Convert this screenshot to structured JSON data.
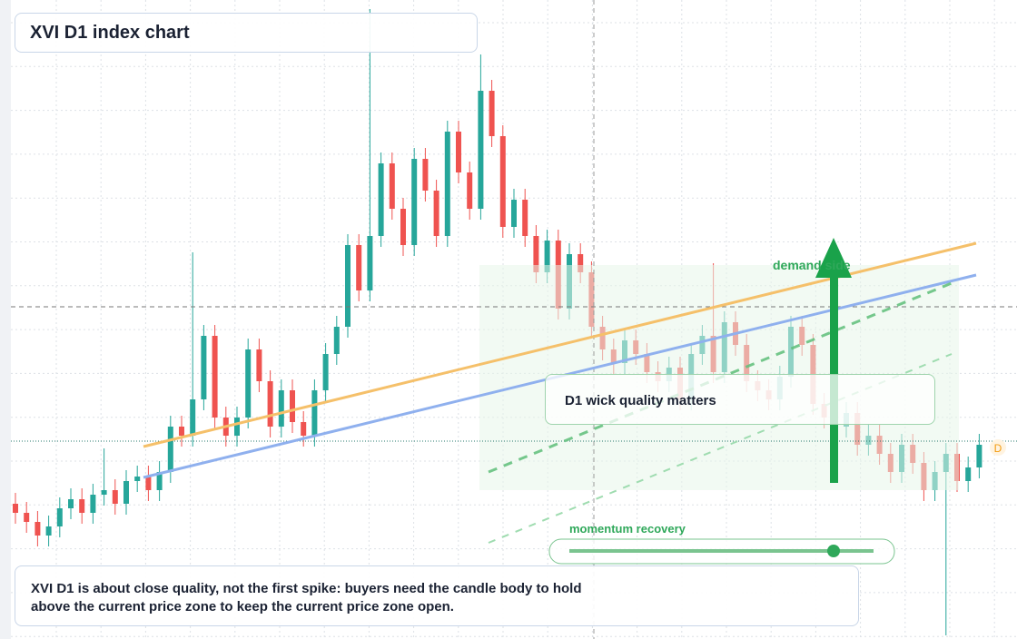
{
  "chart_data": {
    "type": "candlestick",
    "title": "XVI D1 index chart",
    "up_color": "#26a69a",
    "down_color": "#ef5350",
    "grid": true,
    "ylim": [
      0,
      704
    ],
    "ohlc": [
      [
        149,
        161,
        127,
        139
      ],
      [
        139,
        151,
        117,
        129
      ],
      [
        129,
        141,
        102,
        114
      ],
      [
        114,
        136,
        102,
        124
      ],
      [
        124,
        156,
        112,
        144
      ],
      [
        144,
        166,
        132,
        154
      ],
      [
        154,
        166,
        127,
        139
      ],
      [
        139,
        171,
        127,
        159
      ],
      [
        159,
        210,
        147,
        164
      ],
      [
        164,
        176,
        137,
        149
      ],
      [
        149,
        186,
        137,
        174
      ],
      [
        174,
        191,
        162,
        179
      ],
      [
        179,
        191,
        152,
        164
      ],
      [
        164,
        196,
        152,
        184
      ],
      [
        184,
        246,
        172,
        234
      ],
      [
        234,
        246,
        212,
        224
      ],
      [
        224,
        426,
        212,
        264
      ],
      [
        264,
        346,
        252,
        334
      ],
      [
        334,
        346,
        232,
        244
      ],
      [
        244,
        256,
        212,
        224
      ],
      [
        224,
        256,
        212,
        244
      ],
      [
        244,
        331,
        232,
        319
      ],
      [
        319,
        331,
        272,
        284
      ],
      [
        284,
        296,
        222,
        234
      ],
      [
        234,
        286,
        222,
        274
      ],
      [
        274,
        286,
        227,
        239
      ],
      [
        239,
        251,
        212,
        224
      ],
      [
        224,
        286,
        212,
        274
      ],
      [
        274,
        326,
        262,
        314
      ],
      [
        314,
        356,
        302,
        344
      ],
      [
        344,
        446,
        332,
        434
      ],
      [
        434,
        446,
        372,
        384
      ],
      [
        384,
        694,
        372,
        444
      ],
      [
        444,
        536,
        432,
        524
      ],
      [
        524,
        536,
        462,
        474
      ],
      [
        474,
        486,
        422,
        434
      ],
      [
        434,
        541,
        422,
        529
      ],
      [
        529,
        541,
        482,
        494
      ],
      [
        494,
        506,
        432,
        444
      ],
      [
        444,
        571,
        432,
        559
      ],
      [
        559,
        571,
        502,
        514
      ],
      [
        514,
        526,
        462,
        474
      ],
      [
        474,
        644,
        462,
        604
      ],
      [
        604,
        616,
        542,
        554
      ],
      [
        554,
        566,
        442,
        454
      ],
      [
        454,
        496,
        442,
        484
      ],
      [
        484,
        496,
        432,
        444
      ],
      [
        444,
        456,
        392,
        404
      ],
      [
        404,
        451,
        392,
        439
      ],
      [
        439,
        451,
        352,
        364
      ],
      [
        364,
        436,
        352,
        424
      ],
      [
        424,
        436,
        392,
        404
      ],
      [
        404,
        416,
        332,
        344
      ],
      [
        344,
        356,
        307,
        319
      ],
      [
        319,
        331,
        292,
        304
      ],
      [
        304,
        341,
        292,
        329
      ],
      [
        329,
        341,
        302,
        314
      ],
      [
        314,
        326,
        282,
        294
      ],
      [
        294,
        306,
        272,
        284
      ],
      [
        284,
        311,
        272,
        299
      ],
      [
        299,
        311,
        252,
        264
      ],
      [
        264,
        326,
        252,
        314
      ],
      [
        314,
        346,
        302,
        334
      ],
      [
        334,
        414,
        282,
        294
      ],
      [
        294,
        361,
        282,
        349
      ],
      [
        349,
        361,
        312,
        324
      ],
      [
        324,
        336,
        272,
        284
      ],
      [
        284,
        296,
        262,
        274
      ],
      [
        274,
        286,
        252,
        264
      ],
      [
        264,
        301,
        252,
        289
      ],
      [
        289,
        356,
        277,
        344
      ],
      [
        344,
        356,
        312,
        324
      ],
      [
        324,
        336,
        247,
        259
      ],
      [
        259,
        271,
        232,
        244
      ],
      [
        244,
        256,
        222,
        234
      ],
      [
        234,
        261,
        222,
        249
      ],
      [
        249,
        261,
        202,
        214
      ],
      [
        214,
        236,
        202,
        224
      ],
      [
        224,
        236,
        192,
        204
      ],
      [
        204,
        216,
        172,
        184
      ],
      [
        184,
        226,
        172,
        214
      ],
      [
        214,
        226,
        182,
        194
      ],
      [
        194,
        206,
        152,
        164
      ],
      [
        164,
        196,
        152,
        184
      ],
      [
        184,
        216,
        4,
        204
      ],
      [
        204,
        216,
        162,
        174
      ],
      [
        174,
        201,
        162,
        189
      ],
      [
        189,
        226,
        177,
        214
      ]
    ],
    "annotations": {
      "wick": "D1 wick quality matters",
      "demand": "demand side",
      "momentum": "momentum recovery",
      "marker": "D",
      "note": "XVI D1 is about close quality, not the first spike: buyers need the candle body to hold above the current price zone to keep the current price zone open."
    }
  }
}
